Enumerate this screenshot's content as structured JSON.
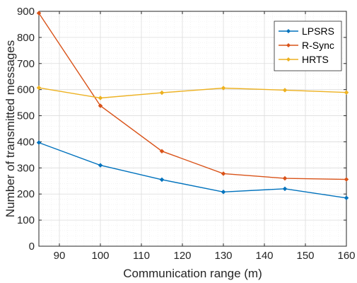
{
  "chart_data": {
    "type": "line",
    "xlabel": "Communication range (m)",
    "ylabel": "Number of transmitted messages",
    "xlim": [
      85,
      160
    ],
    "ylim": [
      0,
      900
    ],
    "xticks": [
      90,
      100,
      110,
      120,
      130,
      140,
      150,
      160
    ],
    "yticks": [
      0,
      100,
      200,
      300,
      400,
      500,
      600,
      700,
      800,
      900
    ],
    "grid": true,
    "minor_grid": true,
    "legend_position": "top-right",
    "x": [
      85,
      100,
      115,
      130,
      145,
      160
    ],
    "series": [
      {
        "name": "LPSRS",
        "color": "#0072BD",
        "values": [
          397,
          310,
          255,
          208,
          220,
          185
        ]
      },
      {
        "name": "R-Sync",
        "color": "#D95319",
        "values": [
          893,
          538,
          364,
          278,
          260,
          256
        ]
      },
      {
        "name": "HRTS",
        "color": "#EDB120",
        "values": [
          607,
          568,
          588,
          606,
          598,
          589
        ]
      }
    ]
  }
}
